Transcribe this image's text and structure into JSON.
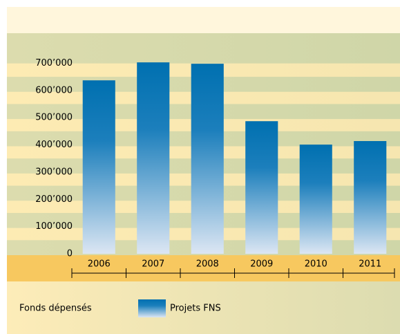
{
  "chart_data": {
    "type": "bar",
    "y_label": "Fonds dépensés",
    "categories": [
      "2006",
      "2007",
      "2008",
      "2009",
      "2010",
      "2011"
    ],
    "series": [
      {
        "name": "Projets FNS",
        "color": "#0070b0",
        "values": [
          637000,
          703000,
          698000,
          487000,
          401000,
          414000
        ]
      }
    ],
    "ylim": [
      0,
      800000
    ],
    "yticks": [
      0,
      {
        "value": 100000,
        "label": "100’000"
      },
      {
        "value": 200000,
        "label": "200’000"
      },
      {
        "value": 300000,
        "label": "300’000"
      },
      {
        "value": 400000,
        "label": "400’000"
      },
      {
        "value": 500000,
        "label": "500’000"
      },
      {
        "value": 600000,
        "label": "600’000"
      },
      {
        "value": 700000,
        "label": "700’000"
      }
    ],
    "legend": "bottom"
  }
}
